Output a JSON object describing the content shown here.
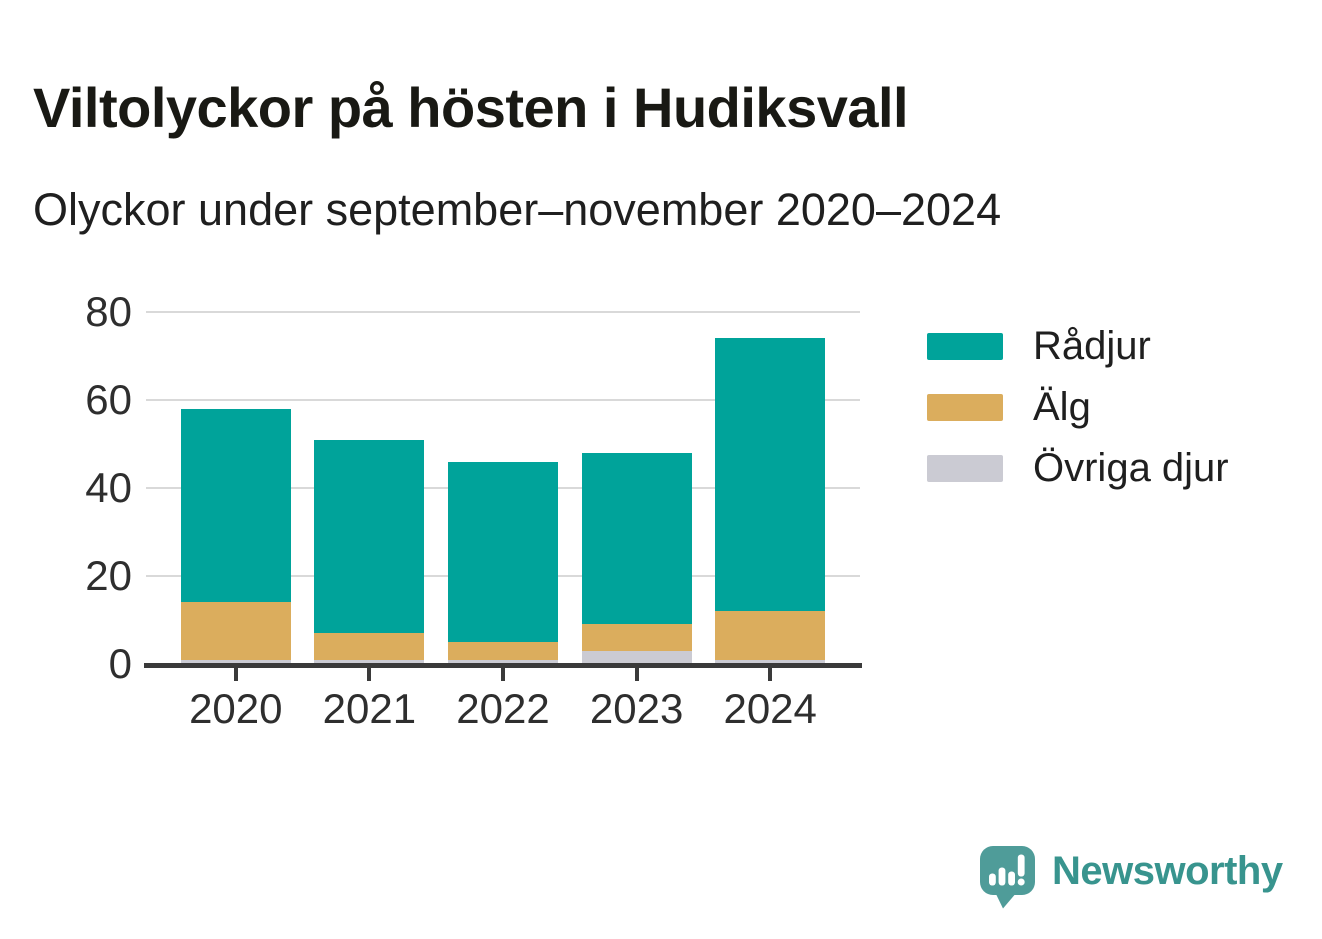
{
  "header": {
    "title": "Viltolyckor på hösten i Hudiksvall",
    "subtitle": "Olyckor under september–november 2020–2024"
  },
  "chart_data": {
    "type": "bar",
    "stacked": true,
    "title": "Viltolyckor på hösten i Hudiksvall",
    "subtitle": "Olyckor under september–november 2020–2024",
    "categories": [
      "2020",
      "2021",
      "2022",
      "2023",
      "2024"
    ],
    "series": [
      {
        "name": "Rådjur",
        "color": "#00a39a",
        "values": [
          44,
          44,
          41,
          39,
          62
        ]
      },
      {
        "name": "Älg",
        "color": "#dbad5d",
        "values": [
          13,
          6,
          4,
          6,
          11
        ]
      },
      {
        "name": "Övriga djur",
        "color": "#cbcbd3",
        "values": [
          1,
          1,
          1,
          3,
          1
        ]
      }
    ],
    "stack_order_bottom_to_top": [
      "Övriga djur",
      "Älg",
      "Rådjur"
    ],
    "totals": [
      58,
      51,
      46,
      48,
      74
    ],
    "xlabel": "",
    "ylabel": "",
    "ylim": [
      0,
      80
    ],
    "yticks": [
      0,
      20,
      40,
      60,
      80
    ],
    "grid": "horizontal-only",
    "gridline_color": "#d9d9d9",
    "axis_color": "#3a3a3a",
    "legend_position": "right-of-plot"
  },
  "branding": {
    "logo_text": "Newsworthy",
    "logo_text_color": "#38948e",
    "logo_icon_color": "#4f9c99",
    "logo_icon_name": "newsworthy-speech-bubble-bar-chart-icon"
  }
}
